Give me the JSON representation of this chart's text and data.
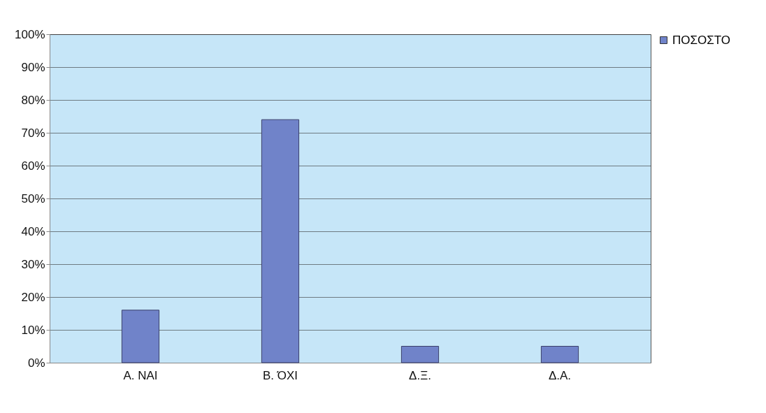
{
  "chart_data": {
    "type": "bar",
    "categories": [
      "Α. ΝΑΙ",
      "Β. ΌΧΙ",
      "Δ.Ξ.",
      "Δ.Α."
    ],
    "series": [
      {
        "name": "ΠΟΣΟΣΤΟ",
        "color": "#7083c9",
        "values": [
          16,
          74,
          5,
          5
        ]
      }
    ],
    "ylim": [
      0,
      100
    ],
    "yticks": [
      {
        "value": 0,
        "label": "0%"
      },
      {
        "value": 10,
        "label": "10%"
      },
      {
        "value": 20,
        "label": "20%"
      },
      {
        "value": 30,
        "label": "30%"
      },
      {
        "value": 40,
        "label": "40%"
      },
      {
        "value": 50,
        "label": "50%"
      },
      {
        "value": 60,
        "label": "60%"
      },
      {
        "value": 70,
        "label": "70%"
      },
      {
        "value": 80,
        "label": "80%"
      },
      {
        "value": 90,
        "label": "90%"
      },
      {
        "value": 100,
        "label": "100%"
      }
    ],
    "grid": "y",
    "legend": "top right"
  }
}
